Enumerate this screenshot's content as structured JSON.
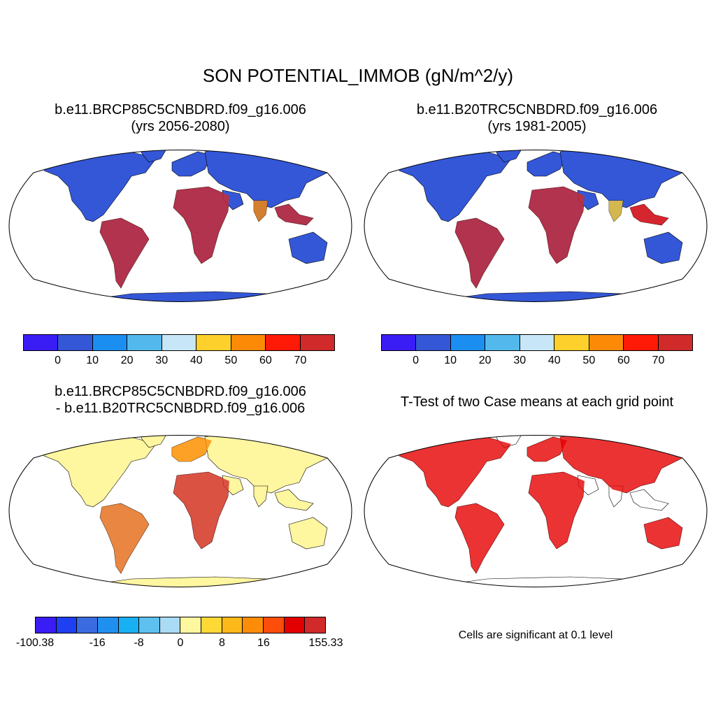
{
  "figure_title": "SON POTENTIAL_IMMOB (gN/m^2/y)",
  "panels": {
    "p1": {
      "line1": "b.e11.BRCP85C5CNBDRD.f09_g16.006",
      "line2": "(yrs 2056-2080)"
    },
    "p2": {
      "line1": "b.e11.B20TRC5CNBDRD.f09_g16.006",
      "line2": "(yrs 1981-2005)"
    },
    "p3": {
      "line1": "b.e11.BRCP85C5CNBDRD.f09_g16.006",
      "line2": "- b.e11.B20TRC5CNBDRD.f09_g16.006"
    },
    "p4": {
      "line1": "T-Test of two Case means at each grid point"
    }
  },
  "colorbar_abs": {
    "colors": [
      "#3a1cf5",
      "#3457d8",
      "#1b8ef2",
      "#53b9ec",
      "#c7e6f7",
      "#fdd02c",
      "#fd8a06",
      "#fe1a06",
      "#d12a2a"
    ],
    "labels": [
      "0",
      "10",
      "20",
      "30",
      "40",
      "50",
      "60",
      "70"
    ]
  },
  "colorbar_diff": {
    "colors": [
      "#3a1cf5",
      "#1f3ff2",
      "#3a6be0",
      "#1f90f0",
      "#18b0f2",
      "#5ec0ee",
      "#a9dbf5",
      "#fff6a0",
      "#fdd836",
      "#fdb81a",
      "#fd8c08",
      "#fd4d0a",
      "#e30000",
      "#d12a2a"
    ],
    "labels": [
      "-100.38",
      "-16",
      "-8",
      "0",
      "8",
      "16",
      "155.33"
    ]
  },
  "ttest_note": "Cells are significant at 0.1 level",
  "colors": {
    "ocean": "#ffffff",
    "land_low": "#3457d8",
    "diff_neutral": "#fff6a0",
    "significant": "#e60000"
  }
}
